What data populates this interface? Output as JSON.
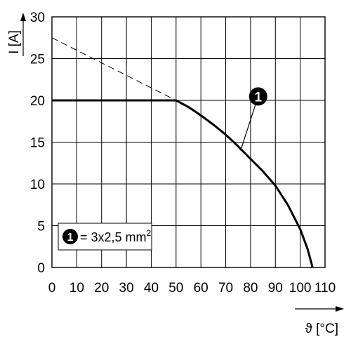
{
  "chart_data": {
    "type": "line",
    "xlabel": "ϑ [°C]",
    "ylabel": "I [A]",
    "xlim": [
      0,
      110
    ],
    "ylim": [
      0,
      30
    ],
    "x_ticks": [
      "0",
      "10",
      "20",
      "30",
      "40",
      "50",
      "60",
      "70",
      "80",
      "90",
      "100",
      "110"
    ],
    "y_ticks": [
      "0",
      "5",
      "10",
      "15",
      "20",
      "25",
      "30"
    ],
    "grid": true,
    "series": [
      {
        "id": "derating-curve",
        "style": "solid",
        "x": [
          0,
          50,
          55,
          60,
          65,
          70,
          75,
          80,
          85,
          90,
          95,
          100,
          103,
          105
        ],
        "y": [
          20,
          20,
          19.2,
          18.2,
          17.1,
          15.9,
          14.5,
          13.0,
          11.5,
          9.8,
          7.5,
          4.6,
          2.2,
          0
        ]
      },
      {
        "id": "extension-line",
        "style": "dashed",
        "x": [
          0,
          50
        ],
        "y": [
          27.5,
          20
        ]
      }
    ],
    "callout": {
      "marker": "1",
      "point": [
        76,
        14
      ]
    },
    "legend": {
      "marker": "1",
      "text": "= 3x2,5 mm",
      "superscript": "2",
      "placement": "bottom-left"
    }
  }
}
